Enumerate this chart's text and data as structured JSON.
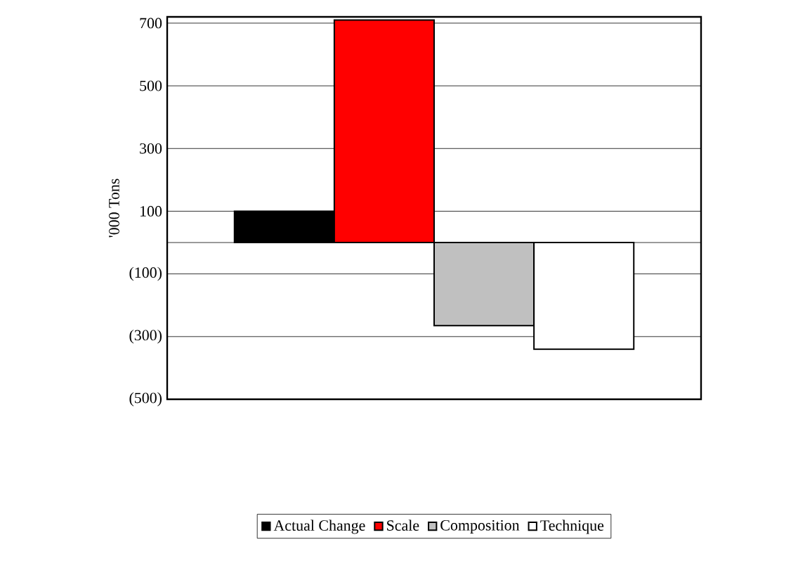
{
  "chart_data": {
    "type": "bar",
    "ylabel": "'000 Tons",
    "categories": [
      null
    ],
    "series": [
      {
        "name": "Actual Change",
        "color": "#000000",
        "values": [
          100
        ]
      },
      {
        "name": "Scale",
        "color": "#ff0000",
        "values": [
          710
        ]
      },
      {
        "name": "Composition",
        "color": "#c0c0c0",
        "values": [
          -265
        ]
      },
      {
        "name": "Technique",
        "color": "#ffffff",
        "values": [
          -340
        ]
      }
    ],
    "ylim": [
      -500,
      720
    ],
    "yticks": [
      {
        "value": -500,
        "label": "(500)"
      },
      {
        "value": -300,
        "label": "(300)"
      },
      {
        "value": -100,
        "label": "(100)"
      },
      100,
      300,
      500,
      700
    ],
    "grid": "y",
    "legend": "bottom"
  }
}
